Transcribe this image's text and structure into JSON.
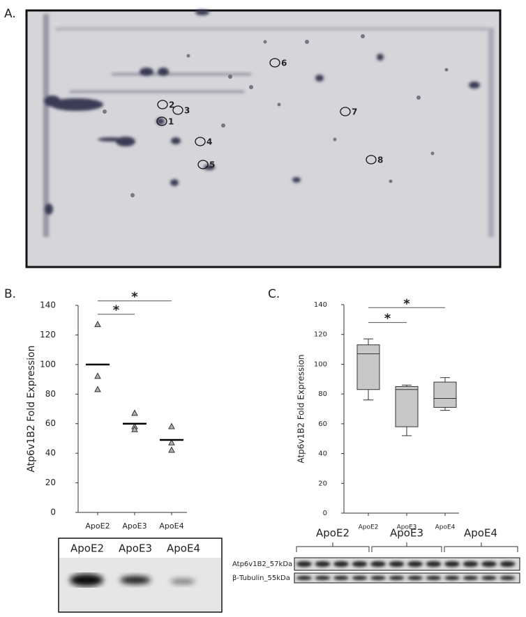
{
  "panel_labels": [
    "A.",
    "B.",
    "C."
  ],
  "gel": {
    "spot_labels": [
      "1",
      "2",
      "3",
      "4",
      "5",
      "6",
      "7",
      "8"
    ]
  },
  "chart_data": [
    {
      "type": "dot",
      "y_label": "Atp6v1B2 Fold Expression",
      "categories": [
        "ApoE2",
        "ApoE3",
        "ApoE4"
      ],
      "points": [
        [
          127,
          92,
          83
        ],
        [
          67,
          58,
          56
        ],
        [
          58,
          47,
          42
        ]
      ],
      "means": [
        100,
        60,
        49
      ],
      "color": "#b0b0b0",
      "ylim": [
        0,
        140
      ],
      "yticks": [
        0,
        20,
        40,
        60,
        80,
        100,
        120,
        140
      ],
      "significance": [
        {
          "label": "*",
          "y": 134,
          "from": "ApoE2",
          "to": "ApoE3"
        },
        {
          "label": "*",
          "y": 143,
          "from": "ApoE2",
          "to": "ApoE4"
        }
      ]
    },
    {
      "type": "box",
      "y_label": "Atp6v1B2 Fold Expression",
      "categories": [
        "ApoE2",
        "ApoE3",
        "ApoE4"
      ],
      "boxes": [
        {
          "whislo": 76,
          "q1": 83,
          "med": 107,
          "q3": 113,
          "whishi": 117
        },
        {
          "whislo": 52,
          "q1": 58,
          "med": 83,
          "q3": 85,
          "whishi": 86
        },
        {
          "whislo": 69,
          "q1": 71,
          "med": 77,
          "q3": 88,
          "whishi": 91
        }
      ],
      "color": "#c8c8c8",
      "ylim": [
        0,
        140
      ],
      "yticks": [
        0,
        20,
        40,
        60,
        80,
        100,
        120,
        140
      ],
      "significance": [
        {
          "label": "*",
          "y": 128,
          "from": "ApoE2",
          "to": "ApoE3"
        },
        {
          "label": "*",
          "y": 138,
          "from": "ApoE2",
          "to": "ApoE4"
        }
      ]
    }
  ],
  "blot_b": {
    "labels": [
      "ApoE2",
      "ApoE3",
      "ApoE4"
    ]
  },
  "blot_c": {
    "groups": [
      "ApoE2",
      "ApoE3",
      "ApoE4"
    ],
    "rows": [
      "Atp6v1B2_57kDa",
      "β-Tubulin_55kDa"
    ]
  }
}
